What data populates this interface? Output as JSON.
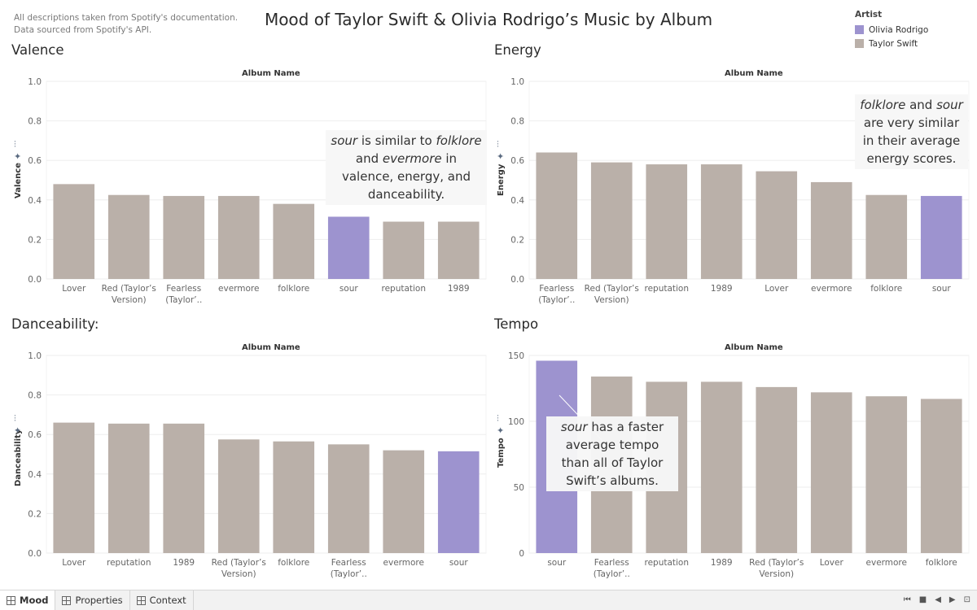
{
  "note": "All descriptions taken from Spotify's documentation. Data sourced from Spotify's API.",
  "title": "Mood of Taylor Swift & Olivia Rodrigo’s Music by Album",
  "legend": {
    "title": "Artist",
    "items": [
      {
        "label": "Olivia Rodrigo",
        "color": "#9d93cf"
      },
      {
        "label": "Taylor Swift",
        "color": "#bab0a9"
      }
    ]
  },
  "colors": {
    "olivia": "#9d93cf",
    "taylor": "#bab0a9",
    "grid": "#eeeeee",
    "axis_text": "#666666"
  },
  "icons": {
    "chart": "bar-chart-icon",
    "pin": "pin-icon"
  },
  "chart_data": [
    {
      "type": "bar",
      "title": "Valence",
      "xlabel": "Album Name",
      "ylabel": "Valence",
      "ylim": [
        0,
        1.0
      ],
      "yticks": [
        "1.0",
        "0.8",
        "0.6",
        "0.4",
        "0.2",
        "0.0"
      ],
      "categories": [
        "Lover",
        "Red (Taylor’s Version)",
        "Fearless (Taylor’..",
        "evermore",
        "folklore",
        "sour",
        "reputation",
        "1989"
      ],
      "values": [
        0.48,
        0.425,
        0.42,
        0.42,
        0.38,
        0.315,
        0.29,
        0.29
      ],
      "highlight": [
        "sour"
      ],
      "annotation": {
        "parts": [
          [
            "i",
            "sour"
          ],
          [
            "t",
            " is similar to "
          ],
          [
            "i",
            "folklore"
          ],
          [
            "t",
            " and "
          ],
          [
            "i",
            "evermore"
          ],
          [
            "t",
            " in valence, energy, and danceability."
          ]
        ]
      }
    },
    {
      "type": "bar",
      "title": "Energy",
      "xlabel": "Album Name",
      "ylabel": "Energy",
      "ylim": [
        0,
        1.0
      ],
      "yticks": [
        "1.0",
        "0.8",
        "0.6",
        "0.4",
        "0.2",
        "0.0"
      ],
      "categories": [
        "Fearless (Taylor’..",
        "Red (Taylor’s Version)",
        "reputation",
        "1989",
        "Lover",
        "evermore",
        "folklore",
        "sour"
      ],
      "values": [
        0.64,
        0.59,
        0.58,
        0.58,
        0.545,
        0.49,
        0.425,
        0.42
      ],
      "highlight": [
        "sour"
      ],
      "annotation": {
        "parts": [
          [
            "i",
            "folklore"
          ],
          [
            "t",
            " and "
          ],
          [
            "i",
            "sour"
          ],
          [
            "t",
            " are very similar in their average energy scores."
          ]
        ]
      }
    },
    {
      "type": "bar",
      "title": "Danceability:",
      "xlabel": "Album Name",
      "ylabel": "Danceability",
      "ylim": [
        0,
        1.0
      ],
      "yticks": [
        "1.0",
        "0.8",
        "0.6",
        "0.4",
        "0.2",
        "0.0"
      ],
      "categories": [
        "Lover",
        "reputation",
        "1989",
        "Red (Taylor’s Version)",
        "folklore",
        "Fearless (Taylor’..",
        "evermore",
        "sour"
      ],
      "values": [
        0.66,
        0.655,
        0.655,
        0.575,
        0.565,
        0.55,
        0.52,
        0.515
      ],
      "highlight": [
        "sour"
      ]
    },
    {
      "type": "bar",
      "title": "Tempo",
      "xlabel": "Album Name",
      "ylabel": "Tempo",
      "ylim": [
        0,
        150
      ],
      "yticks": [
        "150",
        "100",
        "50",
        "0"
      ],
      "categories": [
        "sour",
        "Fearless (Taylor’..",
        "reputation",
        "1989",
        "Red (Taylor’s Version)",
        "Lover",
        "evermore",
        "folklore"
      ],
      "values": [
        146,
        134,
        130,
        130,
        126,
        122,
        119,
        117
      ],
      "highlight": [
        "sour"
      ],
      "annotation": {
        "parts": [
          [
            "i",
            "sour"
          ],
          [
            "t",
            " has a faster average tempo than all of Taylor Swift’s albums."
          ]
        ]
      }
    }
  ],
  "tabs": [
    {
      "label": "Mood",
      "active": true
    },
    {
      "label": "Properties",
      "active": false
    },
    {
      "label": "Context",
      "active": false
    }
  ],
  "nav": {
    "first": "⏮",
    "stop": "■",
    "prev": "◀",
    "next": "▶",
    "present": "⊡"
  }
}
